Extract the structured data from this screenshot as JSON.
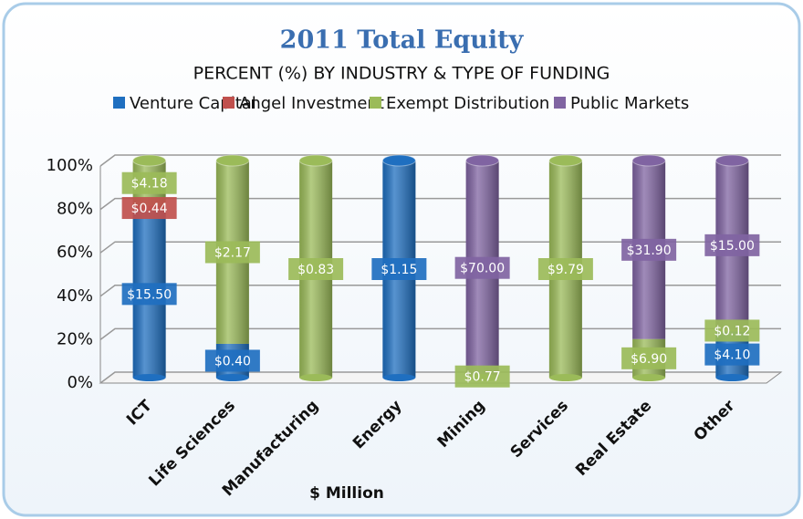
{
  "chart_data": {
    "type": "stacked_cylinder_percent",
    "title": "2011 Total Equity",
    "subtitle": "PERCENT (%) BY INDUSTRY & TYPE OF FUNDING",
    "x_label": "$ Million",
    "normalize": true,
    "categories": [
      "ICT",
      "Life Sciences",
      "Manufacturing",
      "Energy",
      "Mining",
      "Services",
      "Real Estate",
      "Other"
    ],
    "series": [
      {
        "name": "Venture Capital",
        "color": "#1f6fc0",
        "values": [
          15.5,
          0.4,
          null,
          1.15,
          null,
          null,
          null,
          4.1
        ],
        "value_labels": [
          "$15.50",
          "$0.40",
          null,
          "$1.15",
          null,
          null,
          null,
          "$4.10"
        ]
      },
      {
        "name": "Angel Investment",
        "color": "#c0504d",
        "values": [
          0.44,
          null,
          null,
          null,
          null,
          null,
          null,
          null
        ],
        "value_labels": [
          "$0.44",
          null,
          null,
          null,
          null,
          null,
          null,
          null
        ]
      },
      {
        "name": "Exempt Distribution",
        "color": "#9bbb59",
        "values": [
          4.18,
          2.17,
          0.83,
          null,
          0.77,
          9.79,
          6.9,
          0.12
        ],
        "value_labels": [
          "$4.18",
          "$2.17",
          "$0.83",
          null,
          "$0.77",
          "$9.79",
          "$6.90",
          "$0.12"
        ]
      },
      {
        "name": "Public Markets",
        "color": "#8064a2",
        "values": [
          null,
          null,
          null,
          null,
          70.0,
          null,
          31.9,
          15.0
        ],
        "value_labels": [
          null,
          null,
          null,
          null,
          "$70.00",
          null,
          "$31.90",
          "$15.00"
        ]
      }
    ],
    "ylim": [
      0,
      100
    ],
    "yticks": [
      {
        "value": 0,
        "label": "0%"
      },
      {
        "value": 20,
        "label": "20%"
      },
      {
        "value": 40,
        "label": "40%"
      },
      {
        "value": 60,
        "label": "60%"
      },
      {
        "value": 80,
        "label": "80%"
      },
      {
        "value": 100,
        "label": "100%"
      }
    ],
    "grid": true,
    "legend": "top"
  }
}
